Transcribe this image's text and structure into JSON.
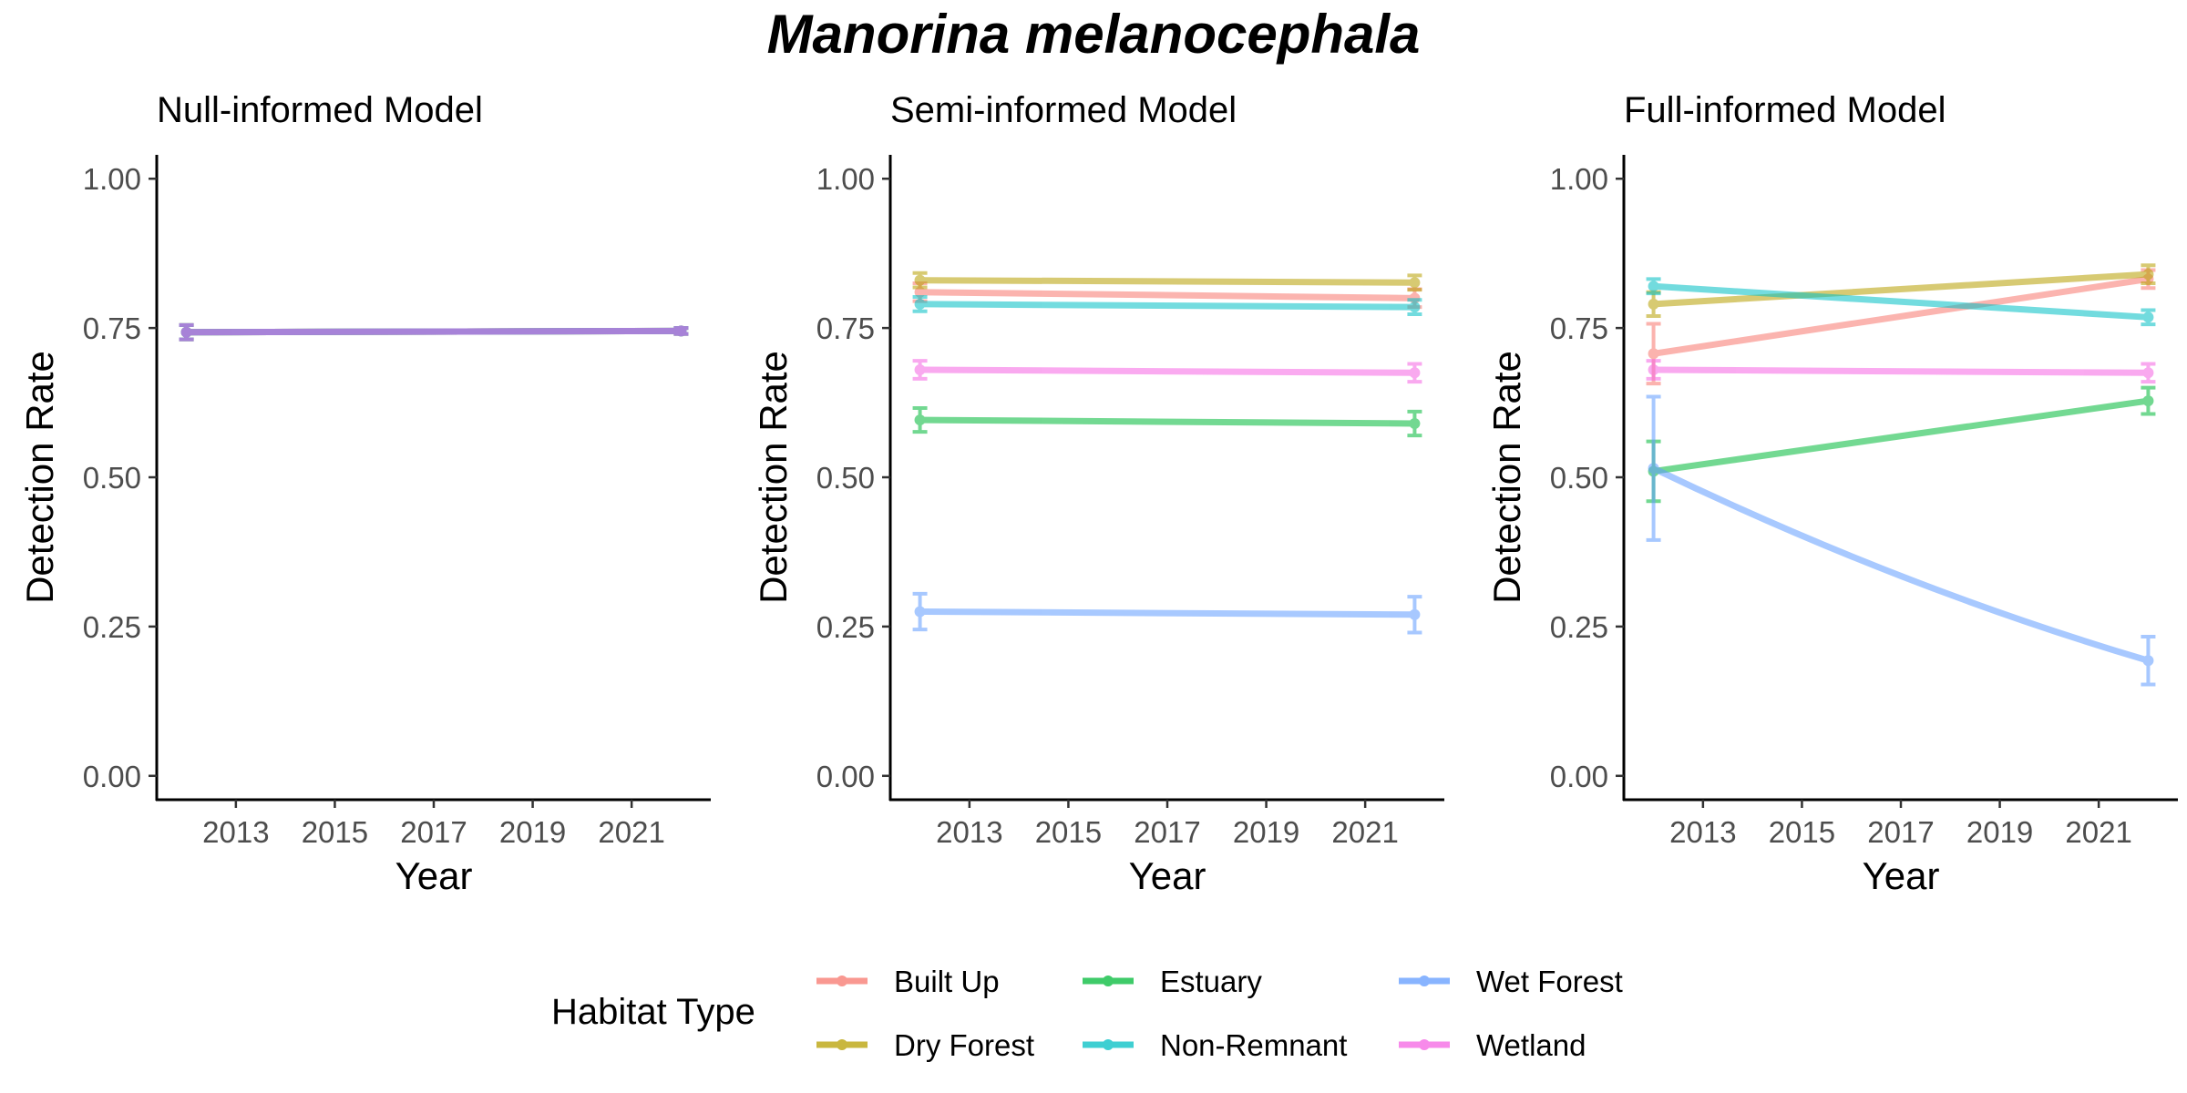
{
  "chart_data": {
    "title": "Manorina melanocephala",
    "type": "line",
    "x_unit": "Year",
    "shared": {
      "xlabel": "Year",
      "ylabel": "Detection Rate",
      "xlim": [
        2011.4,
        2022.6
      ],
      "ylim": [
        -0.04,
        1.04
      ],
      "x_ticks": [
        2013,
        2015,
        2017,
        2019,
        2021
      ],
      "y_ticks": [
        0.0,
        0.25,
        0.5,
        0.75,
        1.0
      ],
      "y_tick_labels": [
        "0.00",
        "0.25",
        "0.50",
        "0.75",
        "1.00"
      ],
      "grid": false
    },
    "legend": {
      "title": "Habitat Type",
      "position": "bottom",
      "entries": [
        {
          "name": "Built Up",
          "color": "#F8766D"
        },
        {
          "name": "Dry Forest",
          "color": "#B79F00"
        },
        {
          "name": "Estuary",
          "color": "#00BA38"
        },
        {
          "name": "Non-Remnant",
          "color": "#00BFC4"
        },
        {
          "name": "Wet Forest",
          "color": "#619CFF"
        },
        {
          "name": "Wetland",
          "color": "#F564E3"
        }
      ]
    },
    "panels": [
      {
        "title": "Null-informed Model",
        "series": [
          {
            "name": "Built Up",
            "color": "#F8766D",
            "x": [
              2012,
              2022
            ],
            "y": [
              0.743,
              0.745
            ],
            "err": [
              0.012,
              0.005
            ]
          },
          {
            "name": "Dry Forest",
            "color": "#B79F00",
            "x": [
              2012,
              2022
            ],
            "y": [
              0.743,
              0.745
            ],
            "err": [
              0.012,
              0.005
            ]
          },
          {
            "name": "Estuary",
            "color": "#00BA38",
            "x": [
              2012,
              2022
            ],
            "y": [
              0.743,
              0.745
            ],
            "err": [
              0.012,
              0.005
            ]
          },
          {
            "name": "Non-Remnant",
            "color": "#00BFC4",
            "x": [
              2012,
              2022
            ],
            "y": [
              0.743,
              0.745
            ],
            "err": [
              0.012,
              0.005
            ]
          },
          {
            "name": "Wet Forest",
            "color": "#619CFF",
            "x": [
              2012,
              2022
            ],
            "y": [
              0.743,
              0.745
            ],
            "err": [
              0.012,
              0.005
            ]
          },
          {
            "name": "Wetland",
            "color": "#F564E3",
            "x": [
              2012,
              2022
            ],
            "y": [
              0.743,
              0.745
            ],
            "err": [
              0.012,
              0.005
            ]
          }
        ]
      },
      {
        "title": "Semi-informed Model",
        "series": [
          {
            "name": "Built Up",
            "color": "#F8766D",
            "x": [
              2012,
              2022
            ],
            "y": [
              0.81,
              0.8
            ],
            "err": [
              0.015,
              0.015
            ]
          },
          {
            "name": "Dry Forest",
            "color": "#B79F00",
            "x": [
              2012,
              2022
            ],
            "y": [
              0.83,
              0.826
            ],
            "err": [
              0.012,
              0.012
            ]
          },
          {
            "name": "Estuary",
            "color": "#00BA38",
            "x": [
              2012,
              2022
            ],
            "y": [
              0.596,
              0.59
            ],
            "err": [
              0.02,
              0.02
            ]
          },
          {
            "name": "Non-Remnant",
            "color": "#00BFC4",
            "x": [
              2012,
              2022
            ],
            "y": [
              0.79,
              0.785
            ],
            "err": [
              0.012,
              0.012
            ]
          },
          {
            "name": "Wet Forest",
            "color": "#619CFF",
            "x": [
              2012,
              2022
            ],
            "y": [
              0.275,
              0.27
            ],
            "err": [
              0.03,
              0.03
            ]
          },
          {
            "name": "Wetland",
            "color": "#F564E3",
            "x": [
              2012,
              2022
            ],
            "y": [
              0.68,
              0.675
            ],
            "err": [
              0.015,
              0.015
            ]
          }
        ]
      },
      {
        "title": "Full-informed Model",
        "series": [
          {
            "name": "Built Up",
            "color": "#F8766D",
            "x": [
              2012,
              2022
            ],
            "y": [
              0.707,
              0.832
            ],
            "err": [
              0.05,
              0.015
            ]
          },
          {
            "name": "Dry Forest",
            "color": "#B79F00",
            "x": [
              2012,
              2022
            ],
            "y": [
              0.79,
              0.84
            ],
            "err": [
              0.02,
              0.015
            ]
          },
          {
            "name": "Estuary",
            "color": "#00BA38",
            "x": [
              2012,
              2022
            ],
            "y": [
              0.51,
              0.628
            ],
            "err": [
              0.05,
              0.022
            ]
          },
          {
            "name": "Non-Remnant",
            "color": "#00BFC4",
            "x": [
              2012,
              2022
            ],
            "y": [
              0.82,
              0.768
            ],
            "err": [
              0.012,
              0.012
            ]
          },
          {
            "name": "Wet Forest",
            "color": "#619CFF",
            "x": [
              2012,
              2022
            ],
            "y": [
              0.515,
              0.193
            ],
            "err": [
              0.12,
              0.04
            ],
            "curve": true
          },
          {
            "name": "Wetland",
            "color": "#F564E3",
            "x": [
              2012,
              2022
            ],
            "y": [
              0.68,
              0.675
            ],
            "err": [
              0.015,
              0.015
            ]
          }
        ]
      }
    ]
  }
}
